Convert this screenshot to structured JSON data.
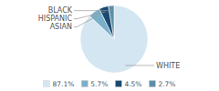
{
  "chart_data": {
    "type": "pie",
    "categories": [
      "WHITE",
      "ASIAN",
      "HISPANIC",
      "BLACK"
    ],
    "values": [
      87.1,
      5.7,
      4.5,
      2.7
    ],
    "value_labels": [
      "87.1%",
      "5.7%",
      "4.5%",
      "2.7%"
    ],
    "colors": [
      "#d4e6f1",
      "#7aafc9",
      "#1a4a72",
      "#5b8fa8"
    ],
    "legend": "bottom"
  }
}
